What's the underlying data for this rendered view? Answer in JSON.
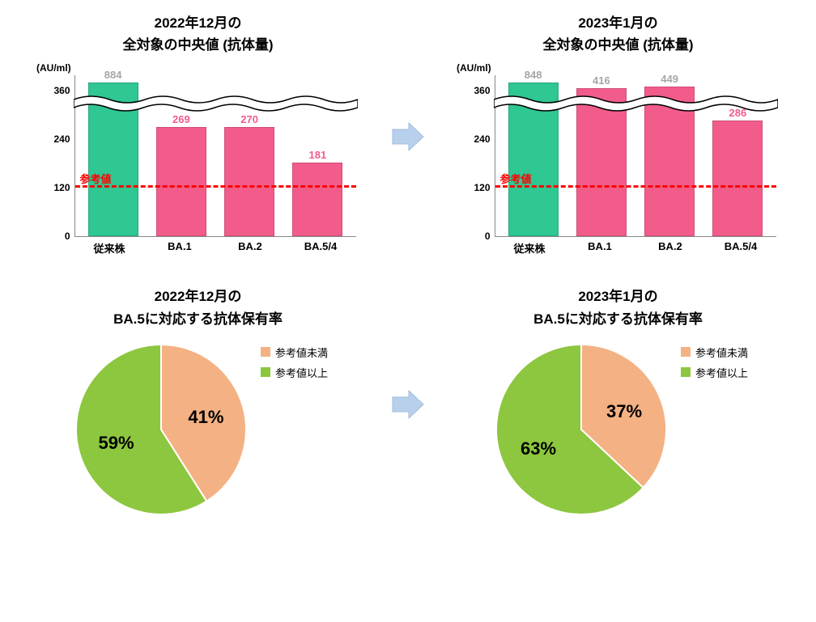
{
  "colors": {
    "green": "#2fc792",
    "pink": "#f25c8a",
    "pie_green": "#8dc63f",
    "pie_orange": "#f4b183",
    "arrow": "#b8d0ec",
    "val_gray": "#a6a6a6",
    "val_pink": "#f25c8a",
    "ref": "#ff0000"
  },
  "bar_left": {
    "title_l1": "2022年12月の",
    "title_l2": "全対象の中央値 (抗体量)",
    "unit": "(AU/ml)",
    "ymax": 400,
    "yticks": [
      0,
      120,
      240,
      360
    ],
    "ref_value": 120,
    "ref_label": "参考値",
    "break_top": 24,
    "categories": [
      "従来株",
      "BA.1",
      "BA.2",
      "BA.5/4"
    ],
    "bars": [
      {
        "value": 884,
        "display_h": 190,
        "color": "#2fc792",
        "label_color": "#a6a6a6"
      },
      {
        "value": 269,
        "display_h": 135,
        "color": "#f25c8a",
        "label_color": "#f25c8a"
      },
      {
        "value": 270,
        "display_h": 135,
        "color": "#f25c8a",
        "label_color": "#f25c8a"
      },
      {
        "value": 181,
        "display_h": 91,
        "color": "#f25c8a",
        "label_color": "#f25c8a"
      }
    ]
  },
  "bar_right": {
    "title_l1": "2023年1月の",
    "title_l2": "全対象の中央値 (抗体量)",
    "unit": "(AU/ml)",
    "ymax": 400,
    "yticks": [
      0,
      120,
      240,
      360
    ],
    "ref_value": 120,
    "ref_label": "参考値",
    "break_top": 24,
    "categories": [
      "従来株",
      "BA.1",
      "BA.2",
      "BA.5/4"
    ],
    "bars": [
      {
        "value": 848,
        "display_h": 190,
        "color": "#2fc792",
        "label_color": "#a6a6a6"
      },
      {
        "value": 416,
        "display_h": 183,
        "color": "#f25c8a",
        "label_color": "#a6a6a6"
      },
      {
        "value": 449,
        "display_h": 185,
        "color": "#f25c8a",
        "label_color": "#a6a6a6"
      },
      {
        "value": 286,
        "display_h": 143,
        "color": "#f25c8a",
        "label_color": "#f25c8a"
      }
    ]
  },
  "pie_left": {
    "title_l1": "2022年12月の",
    "title_l2": "BA.5に対応する抗体保有率",
    "above": {
      "pct": 59,
      "label": "参考値以上",
      "color": "#8dc63f"
    },
    "below": {
      "pct": 41,
      "label": "参考値未満",
      "color": "#f4b183"
    }
  },
  "pie_right": {
    "title_l1": "2023年1月の",
    "title_l2": "BA.5に対応する抗体保有率",
    "above": {
      "pct": 63,
      "label": "参考値以上",
      "color": "#8dc63f"
    },
    "below": {
      "pct": 37,
      "label": "参考値未満",
      "color": "#f4b183"
    }
  }
}
